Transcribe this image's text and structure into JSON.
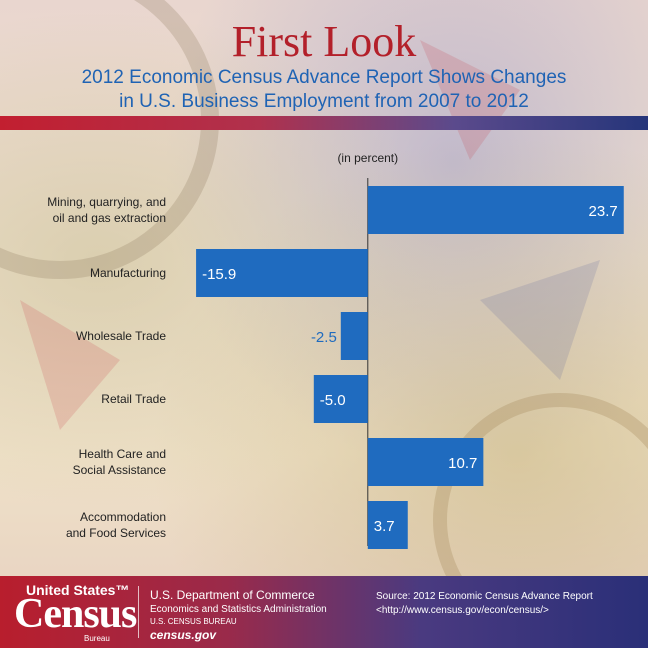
{
  "header": {
    "title": "First Look",
    "subtitle": "2012 Economic Census Advance Report Shows Changes\nin U.S. Business Employment from 2007 to 2012"
  },
  "chart_data": {
    "type": "bar",
    "orientation": "horizontal",
    "unit_label": "(in percent)",
    "categories": [
      "Mining, quarrying, and\noil and gas extraction",
      "Manufacturing",
      "Wholesale Trade",
      "Retail Trade",
      "Health Care and\nSocial Assistance",
      "Accommodation\nand Food Services"
    ],
    "values": [
      23.7,
      -15.9,
      -2.5,
      -5.0,
      10.7,
      3.7
    ],
    "value_labels": [
      "23.7",
      "-15.9",
      "-2.5",
      "-5.0",
      "10.7",
      "3.7"
    ],
    "xlim": [
      -16,
      24
    ],
    "grid": false,
    "bar_color": "#1f6bbf"
  },
  "footer": {
    "logo_top": "United States™",
    "logo_main": "Census",
    "logo_sub": "Bureau",
    "dept": "U.S. Department of Commerce",
    "esa": "Economics and Statistics Administration",
    "bureau": "U.S. CENSUS BUREAU",
    "site": "census.gov",
    "source_line1": "Source: 2012 Economic Census Advance Report",
    "source_line2": "<http://www.census.gov/econ/census/>"
  },
  "colors": {
    "title": "#b3202a",
    "subtitle": "#1f63b4",
    "bar": "#1f6bbf"
  }
}
